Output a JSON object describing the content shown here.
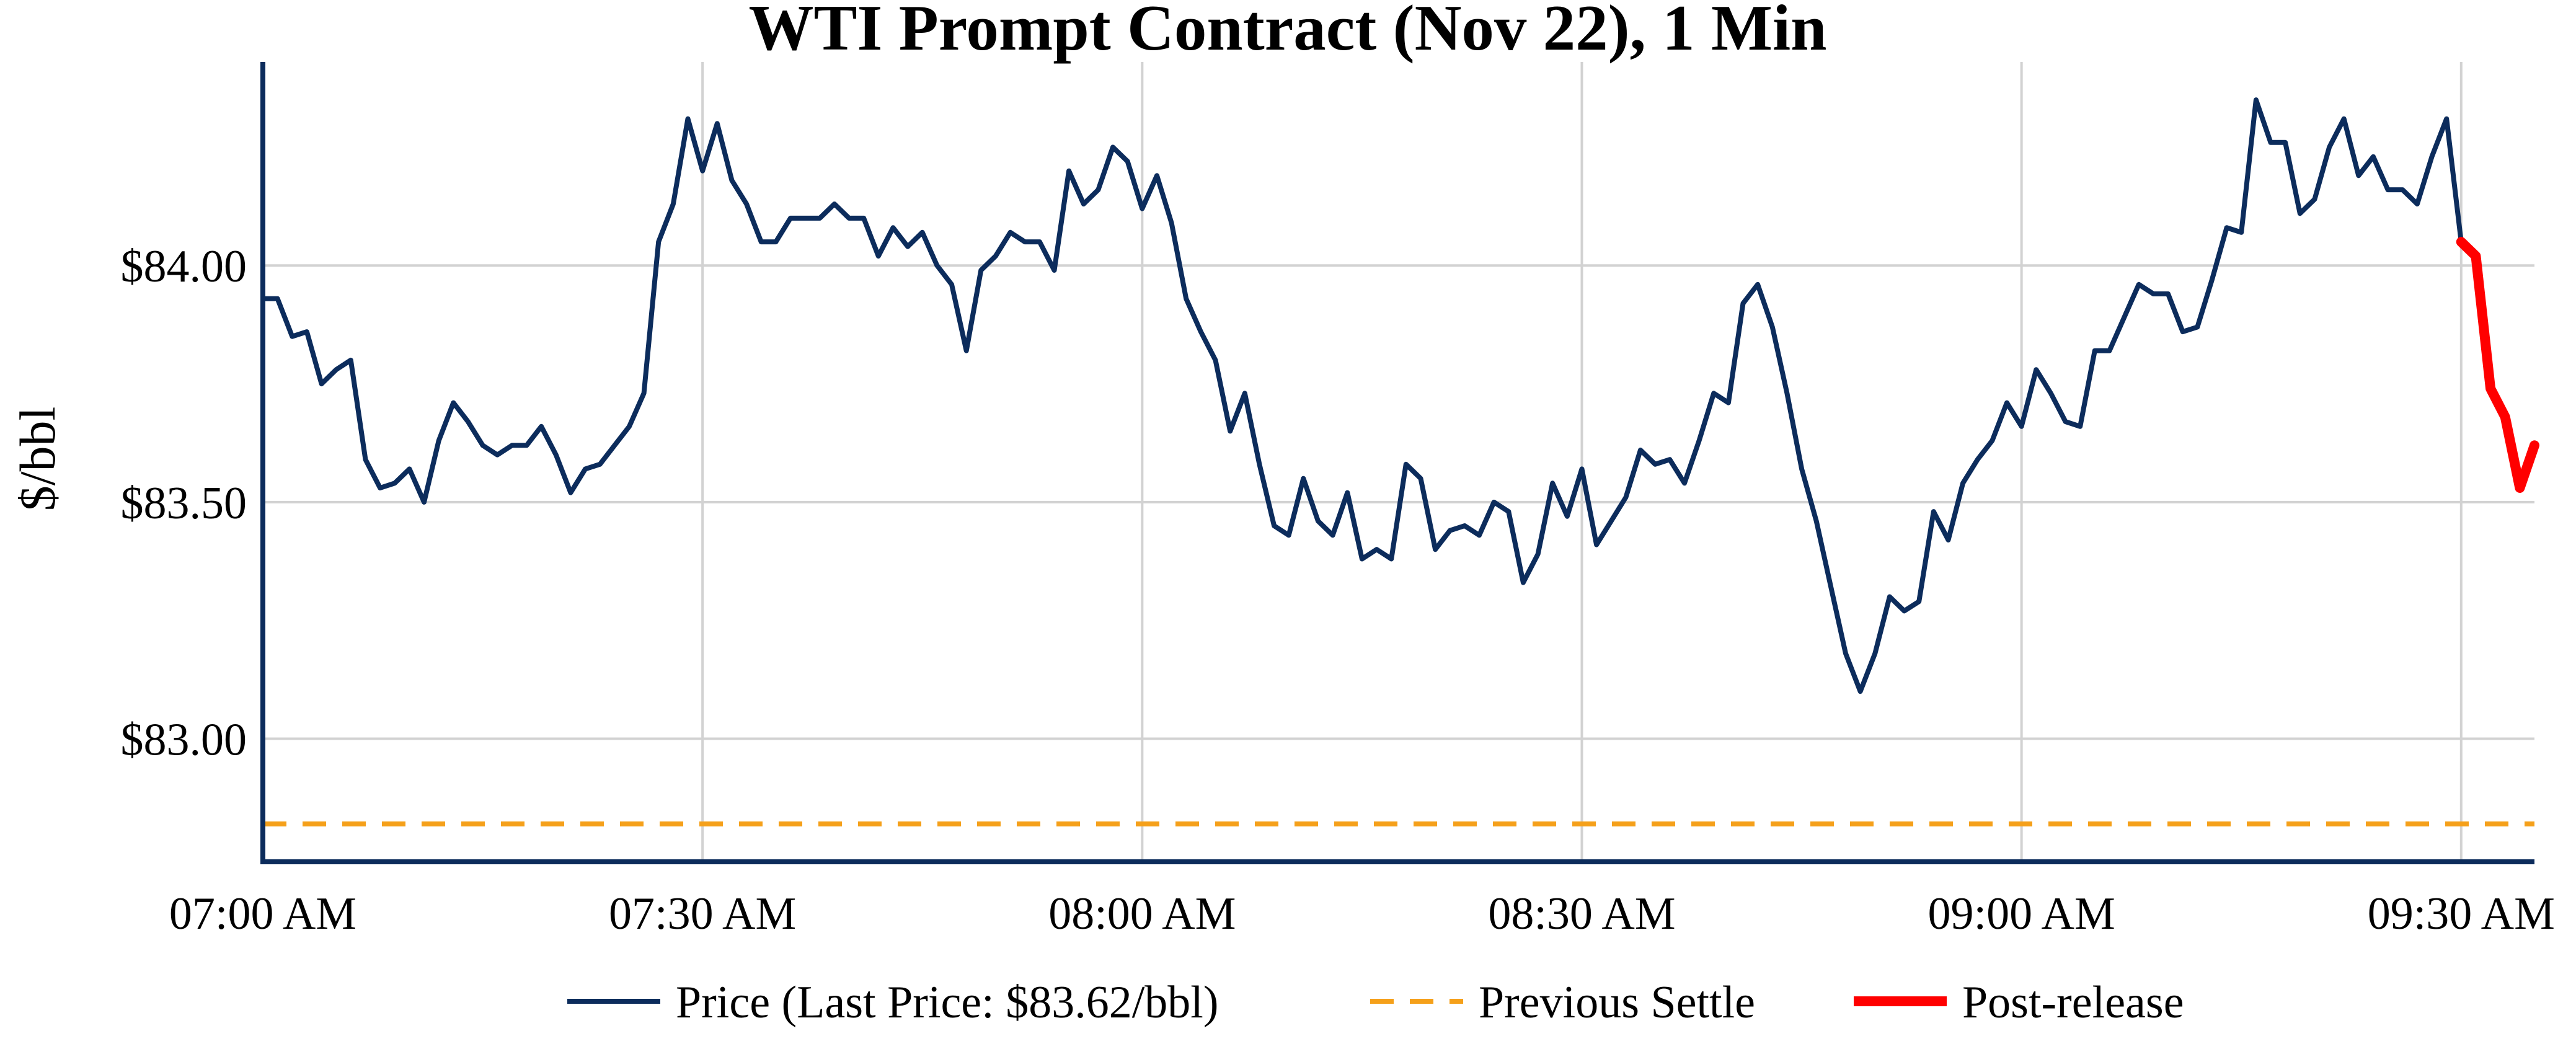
{
  "colors": {
    "price": "#0c2c5c",
    "previous_settle": "#f5a01a",
    "post_release": "#ff0000",
    "axis": "#0c2c5c",
    "grid": "#d2d2d2"
  },
  "chart_data": {
    "type": "line",
    "title": "WTI Prompt Contract (Nov 22), 1 Min",
    "xlabel": "",
    "ylabel": "$/bbl",
    "x_unit": "minutes after 07:00 AM",
    "x_ticks": [
      {
        "label": "07:00 AM",
        "x": 0
      },
      {
        "label": "07:30 AM",
        "x": 30
      },
      {
        "label": "08:00 AM",
        "x": 60
      },
      {
        "label": "08:30 AM",
        "x": 90
      },
      {
        "label": "09:00 AM",
        "x": 120
      },
      {
        "label": "09:30 AM",
        "x": 150
      }
    ],
    "y_ticks": [
      {
        "label": "$83.00",
        "value": 83.0
      },
      {
        "label": "$83.50",
        "value": 83.5
      },
      {
        "label": "$84.00",
        "value": 84.0
      }
    ],
    "xlim": [
      0,
      155
    ],
    "ylim": [
      82.74,
      84.43
    ],
    "grid": true,
    "legend_position": "bottom",
    "series": [
      {
        "name": "Price (Last Price: $83.62/bbl)",
        "style": "solid",
        "x": [
          0,
          1,
          2,
          3,
          4,
          5,
          6,
          7,
          8,
          9,
          10,
          11,
          12,
          13,
          14,
          15,
          16,
          17,
          18,
          19,
          20,
          21,
          22,
          23,
          24,
          25,
          26,
          27,
          28,
          29,
          30,
          31,
          32,
          33,
          34,
          35,
          36,
          37,
          38,
          39,
          40,
          41,
          42,
          43,
          44,
          45,
          46,
          47,
          48,
          49,
          50,
          51,
          52,
          53,
          54,
          55,
          56,
          57,
          58,
          59,
          60,
          61,
          62,
          63,
          64,
          65,
          66,
          67,
          68,
          69,
          70,
          71,
          72,
          73,
          74,
          75,
          76,
          77,
          78,
          79,
          80,
          81,
          82,
          83,
          84,
          85,
          86,
          87,
          88,
          89,
          90,
          91,
          92,
          93,
          94,
          95,
          96,
          97,
          98,
          99,
          100,
          101,
          102,
          103,
          104,
          105,
          106,
          107,
          108,
          109,
          110,
          111,
          112,
          113,
          114,
          115,
          116,
          117,
          118,
          119,
          120,
          121,
          122,
          123,
          124,
          125,
          126,
          127,
          128,
          129,
          130,
          131,
          132,
          133,
          134,
          135,
          136,
          137,
          138,
          139,
          140,
          141,
          142,
          143,
          144,
          145,
          146,
          147,
          148,
          149,
          150
        ],
        "values": [
          83.93,
          83.93,
          83.85,
          83.86,
          83.75,
          83.78,
          83.8,
          83.59,
          83.53,
          83.54,
          83.57,
          83.5,
          83.63,
          83.71,
          83.67,
          83.62,
          83.6,
          83.62,
          83.62,
          83.66,
          83.6,
          83.52,
          83.57,
          83.58,
          83.62,
          83.66,
          83.73,
          84.05,
          84.13,
          84.31,
          84.2,
          84.3,
          84.18,
          84.13,
          84.05,
          84.05,
          84.1,
          84.1,
          84.1,
          84.13,
          84.1,
          84.1,
          84.02,
          84.08,
          84.04,
          84.07,
          84.0,
          83.96,
          83.82,
          83.99,
          84.02,
          84.07,
          84.05,
          84.05,
          83.99,
          84.2,
          84.13,
          84.16,
          84.25,
          84.22,
          84.12,
          84.19,
          84.09,
          83.93,
          83.86,
          83.8,
          83.65,
          83.73,
          83.58,
          83.45,
          83.43,
          83.55,
          83.46,
          83.43,
          83.52,
          83.38,
          83.4,
          83.38,
          83.58,
          83.55,
          83.4,
          83.44,
          83.45,
          83.43,
          83.5,
          83.48,
          83.33,
          83.39,
          83.54,
          83.47,
          83.57,
          83.41,
          83.46,
          83.51,
          83.61,
          83.58,
          83.59,
          83.54,
          83.63,
          83.73,
          83.71,
          83.92,
          83.96,
          83.87,
          83.73,
          83.57,
          83.46,
          83.32,
          83.18,
          83.1,
          83.18,
          83.3,
          83.27,
          83.29,
          83.48,
          83.42,
          83.54,
          83.59,
          83.63,
          83.71,
          83.66,
          83.78,
          83.73,
          83.67,
          83.66,
          83.82,
          83.82,
          83.89,
          83.96,
          83.94,
          83.94,
          83.86,
          83.87,
          83.97,
          84.08,
          84.07,
          84.35,
          84.26,
          84.26,
          84.11,
          84.14,
          84.25,
          84.31,
          84.19,
          84.23,
          84.16,
          84.16,
          84.13,
          84.23,
          84.31,
          84.05
        ]
      },
      {
        "name": "Previous Settle",
        "style": "dashed",
        "x": [
          0,
          155
        ],
        "values": [
          82.82,
          82.82
        ]
      },
      {
        "name": "Post-release",
        "style": "solid-thick",
        "x": [
          150,
          151,
          152,
          153,
          154,
          155
        ],
        "values": [
          84.05,
          84.02,
          83.74,
          83.68,
          83.53,
          83.62
        ]
      }
    ]
  }
}
